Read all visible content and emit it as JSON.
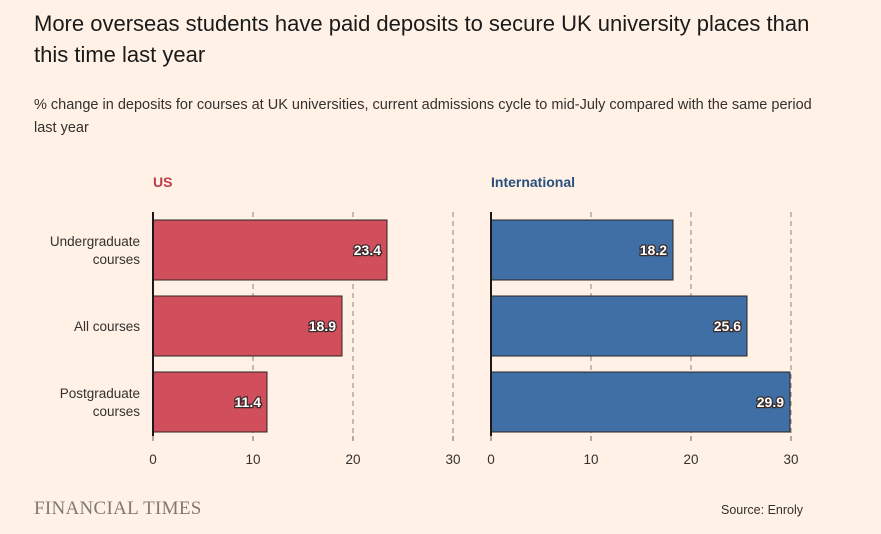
{
  "header": {
    "title": "More overseas students have paid deposits to secure UK university places than this time last year",
    "subtitle": "% change in deposits for courses at UK universities, current admissions cycle to mid-July compared with the same period last year"
  },
  "footer": {
    "brand": "FINANCIAL TIMES",
    "source": "Source: Enroly"
  },
  "chart_data": {
    "type": "bar",
    "orientation": "horizontal",
    "categories": [
      [
        "Undergraduate",
        "courses"
      ],
      [
        "All courses"
      ],
      [
        "Postgraduate",
        "courses"
      ]
    ],
    "xlim": [
      0,
      30
    ],
    "xticks": [
      0,
      10,
      20,
      30
    ],
    "grid": "vertical dashed",
    "panels": [
      {
        "label": "US",
        "color": "#d14f5c",
        "label_color": "#c1394a",
        "values": [
          23.4,
          18.9,
          11.4
        ]
      },
      {
        "label": "International",
        "color": "#3f6fa4",
        "label_color": "#28507f",
        "values": [
          18.2,
          25.6,
          29.9
        ]
      }
    ]
  }
}
